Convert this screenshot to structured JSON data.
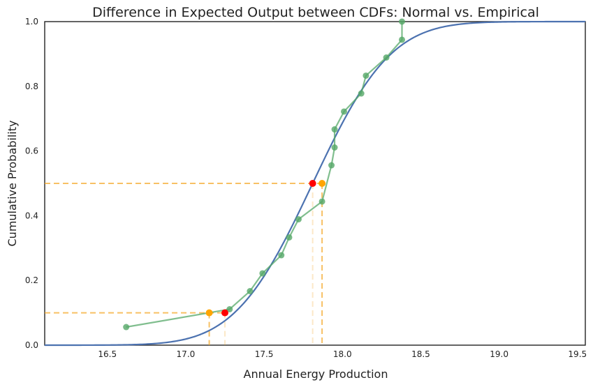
{
  "chart_data": {
    "type": "line",
    "title": "Difference in Expected Output between CDFs: Normal vs. Empirical",
    "xlabel": "Annual Energy Production",
    "ylabel": "Cumulative Probability",
    "xlim": [
      16.1,
      19.55
    ],
    "ylim": [
      0.0,
      1.0
    ],
    "xticks": [
      "16.5",
      "17.0",
      "17.5",
      "18.0",
      "18.5",
      "19.0",
      "19.5"
    ],
    "yticks": [
      "0.0",
      "0.2",
      "0.4",
      "0.6",
      "0.8",
      "1.0"
    ],
    "grid": false,
    "normal_cdf": {
      "mean": 17.81,
      "std": 0.39,
      "color": "#4c72b0"
    },
    "empirical": {
      "color": "#55a868",
      "x": [
        16.62,
        17.28,
        17.41,
        17.49,
        17.61,
        17.66,
        17.72,
        17.87,
        17.93,
        17.95,
        17.95,
        18.01,
        18.12,
        18.15,
        18.28,
        18.38,
        18.38
      ],
      "y": [
        0.056,
        0.111,
        0.167,
        0.222,
        0.278,
        0.333,
        0.389,
        0.444,
        0.556,
        0.611,
        0.667,
        0.722,
        0.778,
        0.833,
        0.889,
        0.944,
        1.0
      ]
    },
    "guides": {
      "color": "#f5a623",
      "y_levels": [
        0.1,
        0.5
      ]
    },
    "highlight_points": {
      "normal": {
        "color": "#ff0000",
        "points": [
          [
            17.25,
            0.1
          ],
          [
            17.81,
            0.5
          ]
        ]
      },
      "empirical": {
        "color": "#ffa500",
        "points": [
          [
            17.15,
            0.1
          ],
          [
            17.87,
            0.5
          ]
        ]
      }
    }
  }
}
